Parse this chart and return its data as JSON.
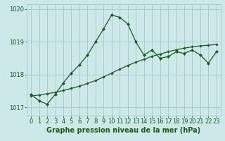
{
  "title": "Graphe pression niveau de la mer (hPa)",
  "bg_color": "#cde8e8",
  "line_color": "#1a5c1a",
  "grid_color": "#a8cccc",
  "ylim": [
    1016.75,
    1020.15
  ],
  "yticks": [
    1017,
    1018,
    1019,
    1020
  ],
  "xlim": [
    -0.5,
    23.5
  ],
  "xticks": [
    0,
    1,
    2,
    3,
    4,
    5,
    6,
    7,
    8,
    9,
    10,
    11,
    12,
    13,
    14,
    15,
    16,
    17,
    18,
    19,
    20,
    21,
    22,
    23
  ],
  "series1_x": [
    0,
    1,
    2,
    3,
    4,
    5,
    6,
    7,
    8,
    9,
    10,
    11,
    12,
    13,
    14,
    15,
    16,
    17,
    18,
    19,
    20,
    21,
    22,
    23
  ],
  "series1_y": [
    1017.4,
    1017.2,
    1017.1,
    1017.4,
    1017.75,
    1018.05,
    1018.3,
    1018.6,
    1019.0,
    1019.4,
    1019.82,
    1019.75,
    1019.55,
    1019.0,
    1018.6,
    1018.75,
    1018.5,
    1018.55,
    1018.7,
    1018.65,
    1018.75,
    1018.6,
    1018.35,
    1018.7
  ],
  "series2_x": [
    0,
    1,
    2,
    3,
    4,
    5,
    6,
    7,
    8,
    9,
    10,
    11,
    12,
    13,
    14,
    15,
    16,
    17,
    18,
    19,
    20,
    21,
    22,
    23
  ],
  "series2_y": [
    1017.35,
    1017.38,
    1017.42,
    1017.46,
    1017.52,
    1017.58,
    1017.65,
    1017.73,
    1017.82,
    1017.93,
    1018.05,
    1018.17,
    1018.28,
    1018.38,
    1018.47,
    1018.56,
    1018.63,
    1018.7,
    1018.76,
    1018.81,
    1018.85,
    1018.88,
    1018.9,
    1018.92
  ],
  "tick_fontsize": 6,
  "title_fontsize": 7
}
